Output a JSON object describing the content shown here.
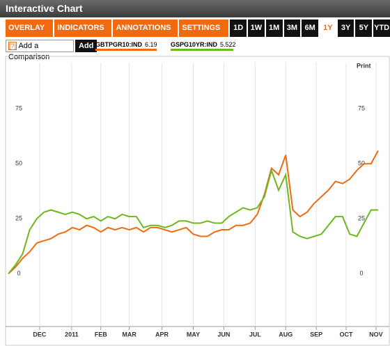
{
  "header": {
    "title": "Interactive Chart"
  },
  "toolbar": {
    "menus": [
      "OVERLAY ▼",
      "INDICATORS ▼",
      "ANNOTATIONS ▼",
      "SETTINGS ▼"
    ],
    "ranges": [
      "1D",
      "1W",
      "1M",
      "3M",
      "6M",
      "1Y",
      "3Y",
      "5Y",
      "YTD"
    ],
    "active_range": 5
  },
  "comparison": {
    "help": "[?]",
    "placeholder": "Add a Comparison",
    "button": "Add"
  },
  "print": "Print",
  "chart_data": {
    "type": "line",
    "series": [
      {
        "name": "GBTPGR10:IND",
        "last": "6.19",
        "color": "#f26a10",
        "values": [
          0,
          3,
          7,
          10,
          14,
          15,
          16,
          18,
          19,
          21,
          20,
          22,
          21,
          19,
          21,
          20,
          21,
          20,
          21,
          19,
          21,
          21,
          20,
          19,
          20,
          21,
          18,
          17,
          17,
          19,
          20,
          20,
          22,
          22,
          23,
          27,
          36,
          48,
          45,
          54,
          29,
          26,
          28,
          32,
          35,
          38,
          42,
          41,
          43,
          47,
          50,
          50,
          56
        ]
      },
      {
        "name": "GSPG10YR:IND",
        "last": "5.522",
        "color": "#6cb81e",
        "values": [
          0,
          4,
          9,
          20,
          25,
          28,
          29,
          28,
          27,
          28,
          27,
          25,
          26,
          24,
          26,
          25,
          27,
          26,
          26,
          21,
          22,
          22,
          21,
          22,
          24,
          24,
          23,
          23,
          24,
          23,
          23,
          26,
          28,
          30,
          29,
          30,
          35,
          47,
          38,
          45,
          19,
          17,
          16,
          17,
          18,
          22,
          26,
          26,
          18,
          17,
          23,
          29,
          29
        ]
      }
    ],
    "xlim": [
      0,
      52
    ],
    "xticks": [
      {
        "value": 4.4,
        "label": "DEC"
      },
      {
        "value": 8.9,
        "label": "2011"
      },
      {
        "value": 13.0,
        "label": "FEB"
      },
      {
        "value": 17.0,
        "label": "MAR"
      },
      {
        "value": 21.6,
        "label": "APR"
      },
      {
        "value": 26.0,
        "label": "MAY"
      },
      {
        "value": 30.3,
        "label": "JUN"
      },
      {
        "value": 34.7,
        "label": "JUL"
      },
      {
        "value": 39.0,
        "label": "AUG"
      },
      {
        "value": 43.3,
        "label": "SEP"
      },
      {
        "value": 47.5,
        "label": "OCT"
      },
      {
        "value": 51.7,
        "label": "NOV"
      }
    ],
    "ylim": [
      -24,
      96
    ],
    "yticks": [
      0,
      25,
      50,
      75
    ],
    "grid": true
  }
}
